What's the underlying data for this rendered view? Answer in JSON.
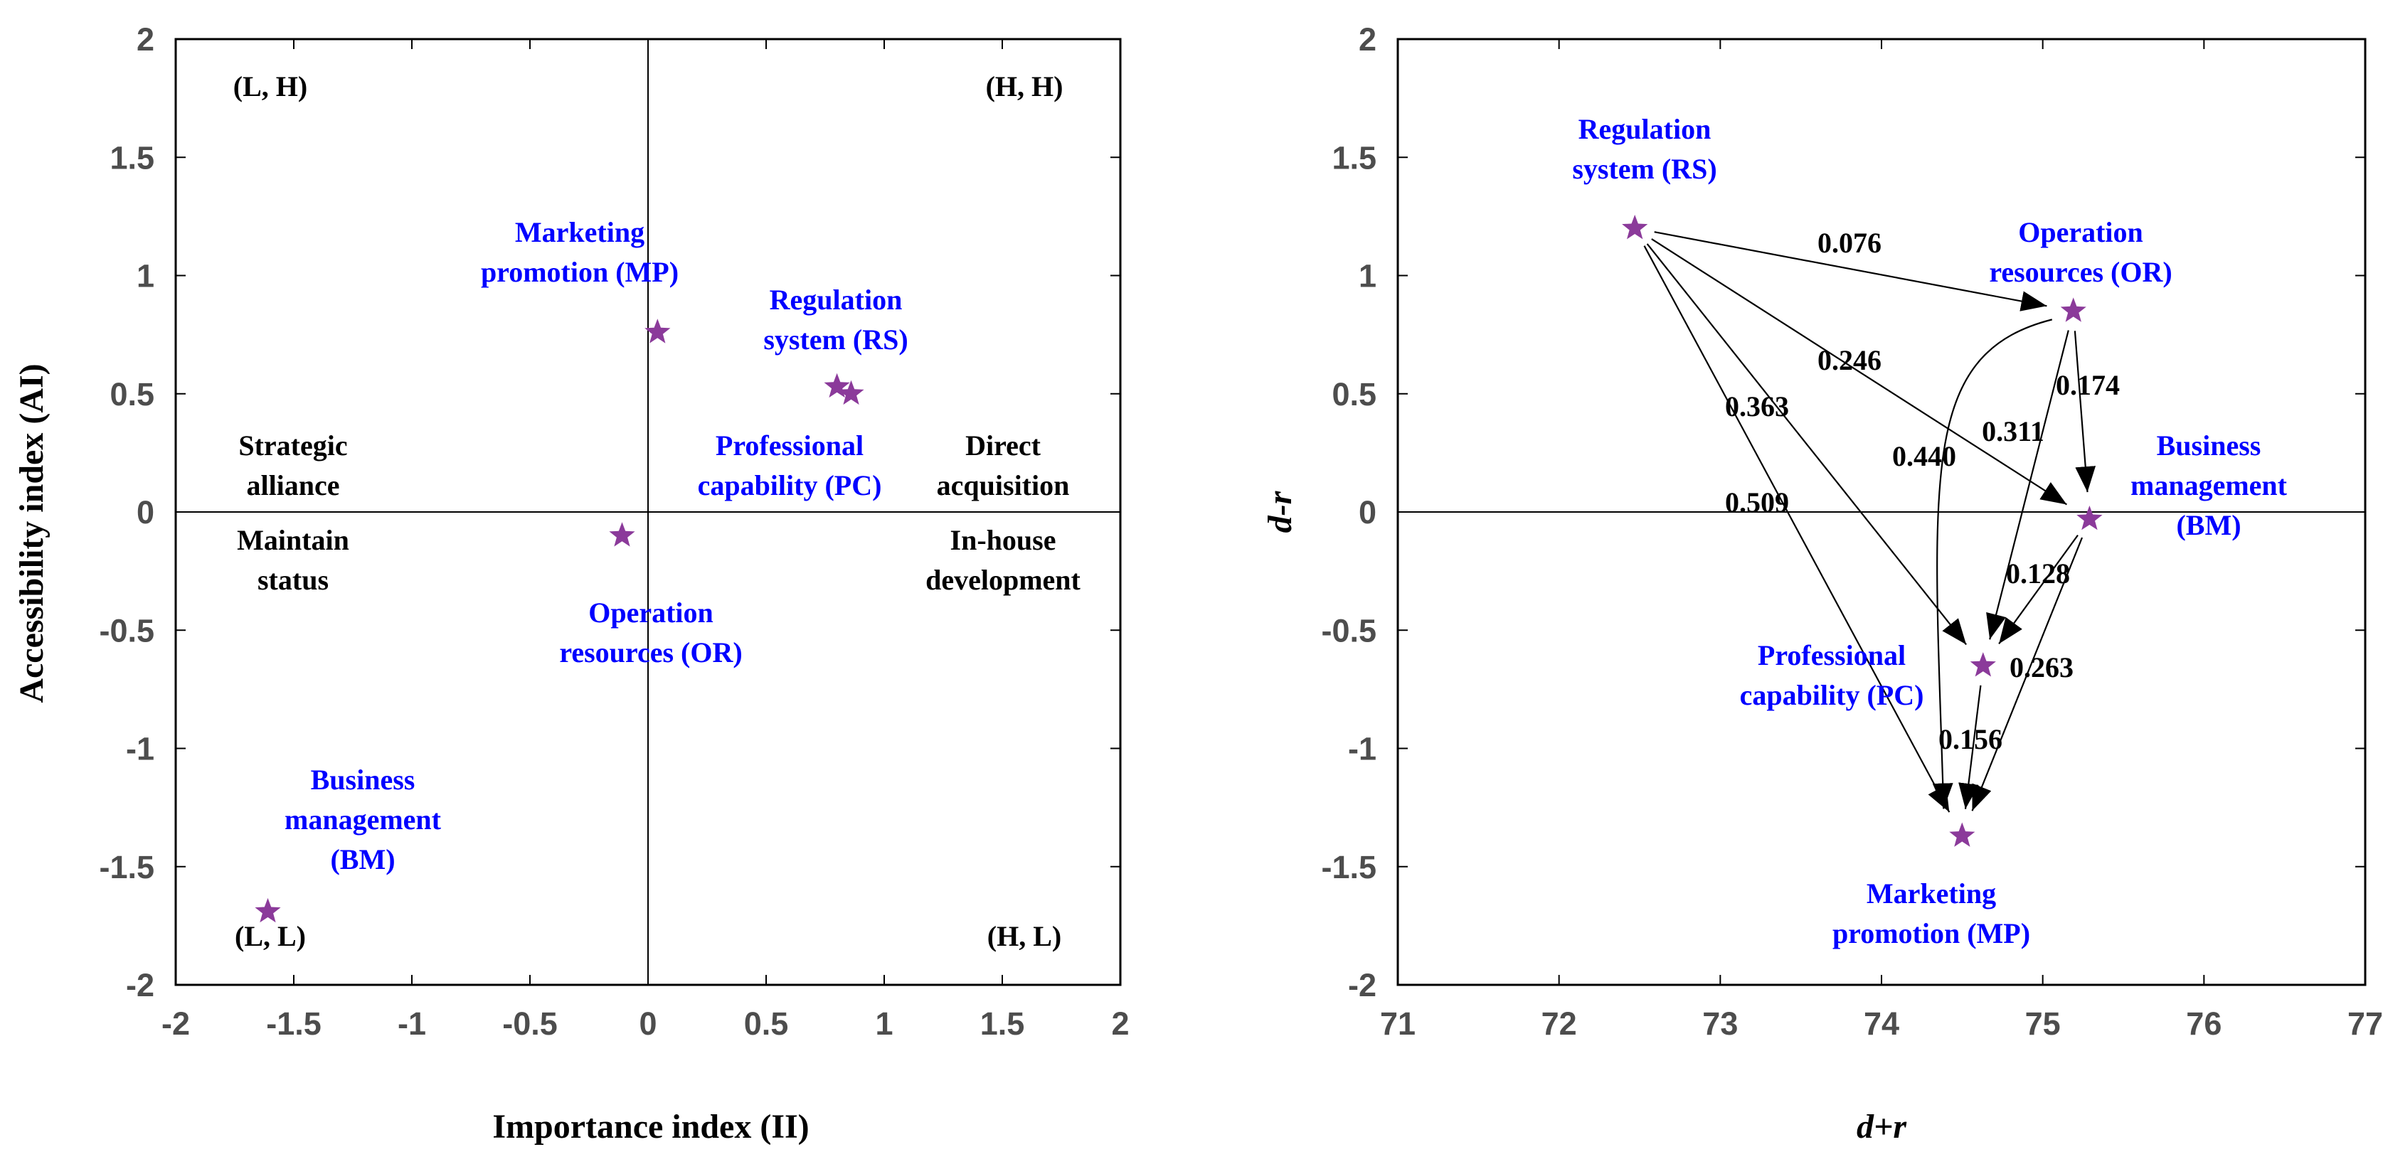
{
  "chart_data": [
    {
      "type": "scatter",
      "xlabel": "Importance index (II)",
      "ylabel": "Accessibility index (AI)",
      "xlim": [
        -2,
        2
      ],
      "ylim": [
        -2,
        2
      ],
      "xticks": [
        "-2",
        "-1.5",
        "-1",
        "-0.5",
        "0",
        "0.5",
        "1",
        "1.5",
        "2"
      ],
      "yticks": [
        "2",
        "1.5",
        "1",
        "0.5",
        "0",
        "-0.5",
        "-1",
        "-1.5",
        "-2"
      ],
      "points": [
        {
          "id": "MP",
          "x": 0.04,
          "y": 0.76
        },
        {
          "id": "RS",
          "x": 0.86,
          "y": 0.5
        },
        {
          "id": "PC",
          "x": 0.8,
          "y": 0.53
        },
        {
          "id": "OR",
          "x": -0.11,
          "y": -0.1
        },
        {
          "id": "BM",
          "x": -1.61,
          "y": -1.69
        }
      ],
      "point_labels": [
        {
          "id": "MP",
          "lines": [
            "Marketing",
            "promotion (MP)"
          ]
        },
        {
          "id": "RS",
          "lines": [
            "Regulation",
            "system (RS)"
          ]
        },
        {
          "id": "PC",
          "lines": [
            "Professional",
            "capability (PC)"
          ]
        },
        {
          "id": "OR",
          "lines": [
            "Operation",
            "resources (OR)"
          ]
        },
        {
          "id": "BM",
          "lines": [
            "Business",
            "management",
            "(BM)"
          ]
        }
      ],
      "quadrant_labels": [
        {
          "id": "lh",
          "text": "(L, H)"
        },
        {
          "id": "hh",
          "text": "(H, H)"
        },
        {
          "id": "ll",
          "text": "(L, L)"
        },
        {
          "id": "hl",
          "text": "(H, L)"
        }
      ],
      "region_labels": [
        {
          "id": "strategic",
          "lines": [
            "Strategic",
            "alliance"
          ]
        },
        {
          "id": "direct",
          "lines": [
            "Direct",
            "acquisition"
          ]
        },
        {
          "id": "maintain",
          "lines": [
            "Maintain",
            "status"
          ]
        },
        {
          "id": "inhouse",
          "lines": [
            "In-house",
            "development"
          ]
        }
      ],
      "marker_color": "#8b3a9a",
      "label_color": "#0000ff"
    },
    {
      "type": "scatter",
      "xlabel": "d+r",
      "ylabel": "d-r",
      "xlim": [
        71,
        77
      ],
      "ylim": [
        -2,
        2
      ],
      "xticks": [
        "71",
        "72",
        "73",
        "74",
        "75",
        "76",
        "77"
      ],
      "yticks": [
        "2",
        "1.5",
        "1",
        "0.5",
        "0",
        "-0.5",
        "-1",
        "-1.5",
        "-2"
      ],
      "points": [
        {
          "id": "RS",
          "x": 72.47,
          "y": 1.2
        },
        {
          "id": "OR",
          "x": 75.19,
          "y": 0.85
        },
        {
          "id": "BM",
          "x": 75.29,
          "y": -0.03
        },
        {
          "id": "PC",
          "x": 74.63,
          "y": -0.65
        },
        {
          "id": "MP",
          "x": 74.5,
          "y": -1.37
        }
      ],
      "point_labels": [
        {
          "id": "RS",
          "lines": [
            "Regulation",
            "system (RS)"
          ]
        },
        {
          "id": "OR",
          "lines": [
            "Operation",
            "resources (OR)"
          ]
        },
        {
          "id": "BM",
          "lines": [
            "Business",
            "management",
            "(BM)"
          ]
        },
        {
          "id": "PC",
          "lines": [
            "Professional",
            "capability (PC)"
          ]
        },
        {
          "id": "MP",
          "lines": [
            "Marketing",
            "promotion (MP)"
          ]
        }
      ],
      "edges": [
        {
          "from": "RS",
          "to": "OR",
          "weight": "0.076"
        },
        {
          "from": "RS",
          "to": "BM",
          "weight": "0.246"
        },
        {
          "from": "RS",
          "to": "PC",
          "weight": "0.363"
        },
        {
          "from": "RS",
          "to": "MP",
          "weight": "0.509"
        },
        {
          "from": "OR",
          "to": "BM",
          "weight": "0.174"
        },
        {
          "from": "OR",
          "to": "PC",
          "weight": "0.311"
        },
        {
          "from": "OR",
          "to": "MP",
          "weight": "0.440"
        },
        {
          "from": "BM",
          "to": "PC",
          "weight": "0.128"
        },
        {
          "from": "BM",
          "to": "MP",
          "weight": "0.263"
        },
        {
          "from": "PC",
          "to": "MP",
          "weight": "0.156"
        }
      ],
      "marker_color": "#8b3a9a",
      "label_color": "#0000ff"
    }
  ]
}
